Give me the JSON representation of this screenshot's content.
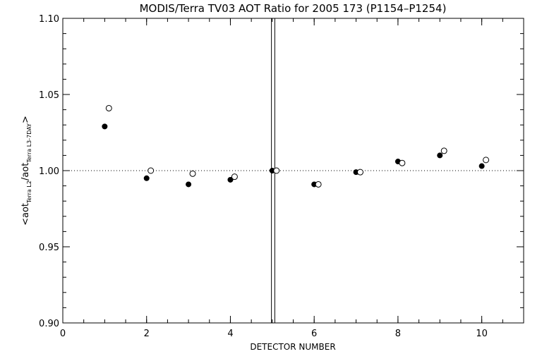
{
  "chart_data": {
    "type": "scatter",
    "title": "MODIS/Terra TV03 AOT Ratio for 2005 173 (P1154–P1254)",
    "xlabel": "DETECTOR NUMBER",
    "ylabel": {
      "open": "<",
      "term1": "aot",
      "sub1": "Terra L2",
      "slash": "/",
      "term2": "aot",
      "sub2": "Terra L3-7DAY",
      "close": ">"
    },
    "xlim": [
      0,
      11
    ],
    "ylim": [
      0.9,
      1.1
    ],
    "x_ticks": [
      {
        "value": 0,
        "label": "0"
      },
      {
        "value": 2,
        "label": "2"
      },
      {
        "value": 4,
        "label": "4"
      },
      {
        "value": 6,
        "label": "6"
      },
      {
        "value": 8,
        "label": "8"
      },
      {
        "value": 10,
        "label": "10"
      }
    ],
    "y_ticks": [
      {
        "value": 0.9,
        "label": "0.90"
      },
      {
        "value": 0.95,
        "label": "0.95"
      },
      {
        "value": 1.0,
        "label": "1.00"
      },
      {
        "value": 1.05,
        "label": "1.05"
      },
      {
        "value": 1.1,
        "label": "1.10"
      }
    ],
    "reference_line": {
      "y": 1.0,
      "style": "dotted"
    },
    "vertical_lines": [
      4.98,
      5.06
    ],
    "series": [
      {
        "marker": "filled-circle",
        "color": "#000000",
        "points": [
          {
            "x": 1,
            "y": 1.029
          },
          {
            "x": 2,
            "y": 0.995
          },
          {
            "x": 3,
            "y": 0.991
          },
          {
            "x": 4,
            "y": 0.994
          },
          {
            "x": 5,
            "y": 1.0
          },
          {
            "x": 6,
            "y": 0.991
          },
          {
            "x": 7,
            "y": 0.999
          },
          {
            "x": 8,
            "y": 1.006
          },
          {
            "x": 9,
            "y": 1.01
          },
          {
            "x": 10,
            "y": 1.003
          }
        ]
      },
      {
        "marker": "open-circle",
        "color": "#000000",
        "points": [
          {
            "x": 1.1,
            "y": 1.041
          },
          {
            "x": 2.1,
            "y": 1.0
          },
          {
            "x": 3.1,
            "y": 0.998
          },
          {
            "x": 4.1,
            "y": 0.996
          },
          {
            "x": 5.1,
            "y": 1.0
          },
          {
            "x": 6.1,
            "y": 0.991
          },
          {
            "x": 7.1,
            "y": 0.999
          },
          {
            "x": 8.1,
            "y": 1.005
          },
          {
            "x": 9.1,
            "y": 1.013
          },
          {
            "x": 10.1,
            "y": 1.007
          }
        ]
      }
    ]
  }
}
